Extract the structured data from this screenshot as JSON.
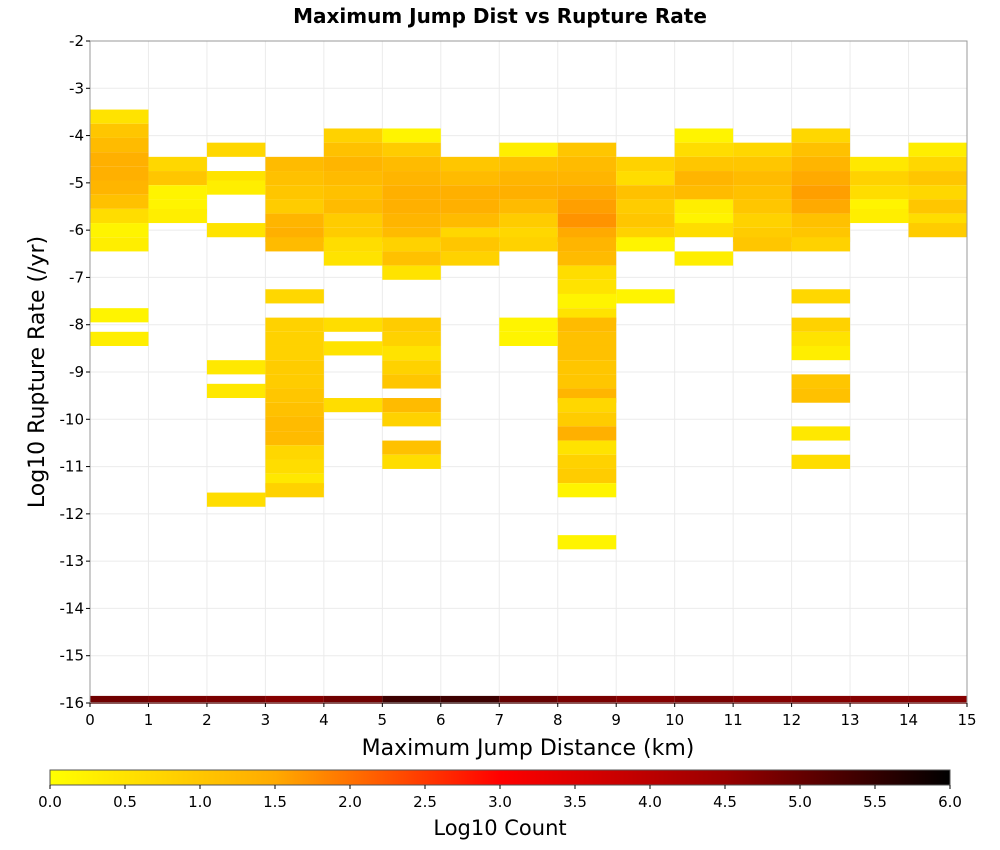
{
  "chart_data": {
    "type": "heatmap",
    "title": "Maximum Jump Dist vs Rupture Rate",
    "xlabel": "Maximum Jump Distance (km)",
    "ylabel": "Log10 Rupture Rate (/yr)",
    "xlim": [
      0,
      15
    ],
    "ylim": [
      -16,
      -2
    ],
    "x_ticks": [
      0,
      1,
      2,
      3,
      4,
      5,
      6,
      7,
      8,
      9,
      10,
      11,
      12,
      13,
      14,
      15
    ],
    "y_ticks": [
      -2,
      -3,
      -4,
      -5,
      -6,
      -7,
      -8,
      -9,
      -10,
      -11,
      -12,
      -13,
      -14,
      -15,
      -16
    ],
    "bin_width_x": 1,
    "bin_height_y": 0.3,
    "grid": true,
    "colorbar": {
      "label": "Log10 Count",
      "range": [
        0,
        6
      ],
      "ticks": [
        "0.0",
        "0.5",
        "1.0",
        "1.5",
        "2.0",
        "2.5",
        "3.0",
        "3.5",
        "4.0",
        "4.5",
        "5.0",
        "5.5",
        "6.0"
      ],
      "stops": [
        "#ffff00",
        "#ffaa00",
        "#ff0000",
        "#990000",
        "#000000"
      ]
    },
    "columns": [
      {
        "x": 0,
        "cells": [
          [
            -3.6,
            0.5
          ],
          [
            -3.9,
            1.0
          ],
          [
            -4.2,
            1.2
          ],
          [
            -4.5,
            1.4
          ],
          [
            -4.8,
            1.4
          ],
          [
            -5.1,
            1.3
          ],
          [
            -5.4,
            1.1
          ],
          [
            -5.7,
            0.6
          ],
          [
            -6.0,
            0.2
          ],
          [
            -6.3,
            0.3
          ],
          [
            -7.8,
            0.2
          ],
          [
            -8.3,
            0.3
          ]
        ]
      },
      {
        "x": 1,
        "cells": [
          [
            -4.6,
            0.7
          ],
          [
            -4.9,
            1.0
          ],
          [
            -5.2,
            0.2
          ],
          [
            -5.5,
            0.2
          ],
          [
            -5.7,
            0.3
          ]
        ]
      },
      {
        "x": 2,
        "cells": [
          [
            -4.3,
            0.7
          ],
          [
            -4.9,
            0.5
          ],
          [
            -5.1,
            0.3
          ],
          [
            -6.0,
            0.5
          ],
          [
            -8.9,
            0.4
          ],
          [
            -9.4,
            0.4
          ],
          [
            -11.7,
            0.6
          ]
        ]
      },
      {
        "x": 3,
        "cells": [
          [
            -4.6,
            1.2
          ],
          [
            -4.9,
            1.1
          ],
          [
            -5.2,
            1.0
          ],
          [
            -5.5,
            0.9
          ],
          [
            -5.8,
            1.3
          ],
          [
            -6.1,
            1.4
          ],
          [
            -6.3,
            1.2
          ],
          [
            -7.4,
            0.7
          ],
          [
            -8.0,
            0.8
          ],
          [
            -8.3,
            0.8
          ],
          [
            -8.6,
            0.8
          ],
          [
            -8.9,
            0.9
          ],
          [
            -9.2,
            0.9
          ],
          [
            -9.5,
            1.0
          ],
          [
            -9.8,
            1.1
          ],
          [
            -10.1,
            1.2
          ],
          [
            -10.4,
            1.2
          ],
          [
            -10.7,
            0.7
          ],
          [
            -11.0,
            0.6
          ],
          [
            -11.3,
            0.4
          ],
          [
            -11.5,
            0.8
          ]
        ]
      },
      {
        "x": 4,
        "cells": [
          [
            -4.0,
            0.8
          ],
          [
            -4.3,
            1.1
          ],
          [
            -4.6,
            1.3
          ],
          [
            -4.9,
            1.2
          ],
          [
            -5.2,
            1.1
          ],
          [
            -5.5,
            1.2
          ],
          [
            -5.8,
            0.9
          ],
          [
            -6.1,
            0.9
          ],
          [
            -6.3,
            0.6
          ],
          [
            -6.6,
            0.5
          ],
          [
            -8.0,
            0.6
          ],
          [
            -8.5,
            0.5
          ],
          [
            -9.7,
            0.6
          ]
        ]
      },
      {
        "x": 5,
        "cells": [
          [
            -4.0,
            0.2
          ],
          [
            -4.3,
            0.9
          ],
          [
            -4.6,
            1.2
          ],
          [
            -4.9,
            1.3
          ],
          [
            -5.2,
            1.4
          ],
          [
            -5.5,
            1.4
          ],
          [
            -5.8,
            1.3
          ],
          [
            -6.1,
            1.2
          ],
          [
            -6.3,
            0.8
          ],
          [
            -6.6,
            1.1
          ],
          [
            -6.9,
            0.5
          ],
          [
            -8.0,
            0.9
          ],
          [
            -8.3,
            0.8
          ],
          [
            -8.6,
            0.5
          ],
          [
            -8.9,
            0.8
          ],
          [
            -9.2,
            1.0
          ],
          [
            -9.7,
            1.2
          ],
          [
            -10.0,
            0.8
          ],
          [
            -10.6,
            1.1
          ],
          [
            -10.9,
            0.6
          ]
        ]
      },
      {
        "x": 6,
        "cells": [
          [
            -4.6,
            1.0
          ],
          [
            -4.9,
            1.2
          ],
          [
            -5.2,
            1.4
          ],
          [
            -5.5,
            1.4
          ],
          [
            -5.8,
            1.2
          ],
          [
            -6.1,
            0.7
          ],
          [
            -6.3,
            1.0
          ],
          [
            -6.6,
            0.8
          ]
        ]
      },
      {
        "x": 7,
        "cells": [
          [
            -4.3,
            0.3
          ],
          [
            -4.6,
            1.1
          ],
          [
            -4.9,
            1.3
          ],
          [
            -5.2,
            1.4
          ],
          [
            -5.5,
            1.2
          ],
          [
            -5.8,
            0.9
          ],
          [
            -6.1,
            0.7
          ],
          [
            -6.3,
            0.8
          ],
          [
            -8.0,
            0.2
          ],
          [
            -8.3,
            0.2
          ]
        ]
      },
      {
        "x": 8,
        "cells": [
          [
            -4.3,
            1.0
          ],
          [
            -4.6,
            1.2
          ],
          [
            -4.9,
            1.3
          ],
          [
            -5.2,
            1.5
          ],
          [
            -5.5,
            1.6
          ],
          [
            -5.8,
            1.7
          ],
          [
            -6.1,
            1.5
          ],
          [
            -6.3,
            1.3
          ],
          [
            -6.6,
            1.2
          ],
          [
            -6.9,
            0.6
          ],
          [
            -7.2,
            0.5
          ],
          [
            -7.5,
            0.2
          ],
          [
            -7.8,
            0.5
          ],
          [
            -8.0,
            1.2
          ],
          [
            -8.3,
            1.1
          ],
          [
            -8.6,
            1.1
          ],
          [
            -8.9,
            1.0
          ],
          [
            -9.2,
            1.0
          ],
          [
            -9.5,
            1.3
          ],
          [
            -9.7,
            0.7
          ],
          [
            -10.0,
            0.9
          ],
          [
            -10.3,
            1.4
          ],
          [
            -10.6,
            0.5
          ],
          [
            -10.9,
            0.8
          ],
          [
            -11.2,
            0.9
          ],
          [
            -11.5,
            0.2
          ],
          [
            -12.6,
            0.2
          ]
        ]
      },
      {
        "x": 9,
        "cells": [
          [
            -4.6,
            0.8
          ],
          [
            -4.9,
            0.6
          ],
          [
            -5.2,
            1.1
          ],
          [
            -5.5,
            0.9
          ],
          [
            -5.8,
            1.0
          ],
          [
            -6.1,
            0.8
          ],
          [
            -6.3,
            0.2
          ],
          [
            -7.4,
            0.2
          ]
        ]
      },
      {
        "x": 10,
        "cells": [
          [
            -4.0,
            0.2
          ],
          [
            -4.3,
            0.6
          ],
          [
            -4.6,
            1.0
          ],
          [
            -4.9,
            1.3
          ],
          [
            -5.2,
            1.2
          ],
          [
            -5.5,
            0.3
          ],
          [
            -5.8,
            0.2
          ],
          [
            -6.0,
            0.6
          ],
          [
            -6.6,
            0.3
          ]
        ]
      },
      {
        "x": 11,
        "cells": [
          [
            -4.3,
            0.7
          ],
          [
            -4.6,
            1.0
          ],
          [
            -4.9,
            1.2
          ],
          [
            -5.2,
            1.1
          ],
          [
            -5.5,
            1.0
          ],
          [
            -5.8,
            0.8
          ],
          [
            -6.1,
            0.9
          ],
          [
            -6.3,
            1.0
          ]
        ]
      },
      {
        "x": 12,
        "cells": [
          [
            -4.0,
            0.7
          ],
          [
            -4.3,
            1.1
          ],
          [
            -4.6,
            1.3
          ],
          [
            -4.9,
            1.5
          ],
          [
            -5.2,
            1.6
          ],
          [
            -5.5,
            1.5
          ],
          [
            -5.8,
            1.1
          ],
          [
            -6.1,
            1.0
          ],
          [
            -6.3,
            0.8
          ],
          [
            -7.4,
            0.7
          ],
          [
            -8.0,
            0.8
          ],
          [
            -8.3,
            0.5
          ],
          [
            -8.6,
            0.3
          ],
          [
            -9.2,
            1.0
          ],
          [
            -9.5,
            1.1
          ],
          [
            -10.3,
            0.4
          ],
          [
            -10.9,
            0.6
          ]
        ]
      },
      {
        "x": 13,
        "cells": [
          [
            -4.6,
            0.4
          ],
          [
            -4.9,
            0.8
          ],
          [
            -5.2,
            0.6
          ],
          [
            -5.5,
            0.2
          ],
          [
            -5.7,
            0.3
          ]
        ]
      },
      {
        "x": 14,
        "cells": [
          [
            -4.3,
            0.3
          ],
          [
            -4.6,
            0.7
          ],
          [
            -4.9,
            1.0
          ],
          [
            -5.2,
            0.7
          ],
          [
            -5.5,
            1.0
          ],
          [
            -5.8,
            0.6
          ],
          [
            -6.0,
            0.9
          ]
        ]
      }
    ],
    "bottom_row": {
      "y": -16,
      "values": [
        4.9,
        4.8,
        4.8,
        4.7,
        4.9,
        5.4,
        5.4,
        5.0,
        4.8,
        4.7,
        4.8,
        4.7,
        4.7,
        4.7,
        4.7
      ]
    }
  }
}
